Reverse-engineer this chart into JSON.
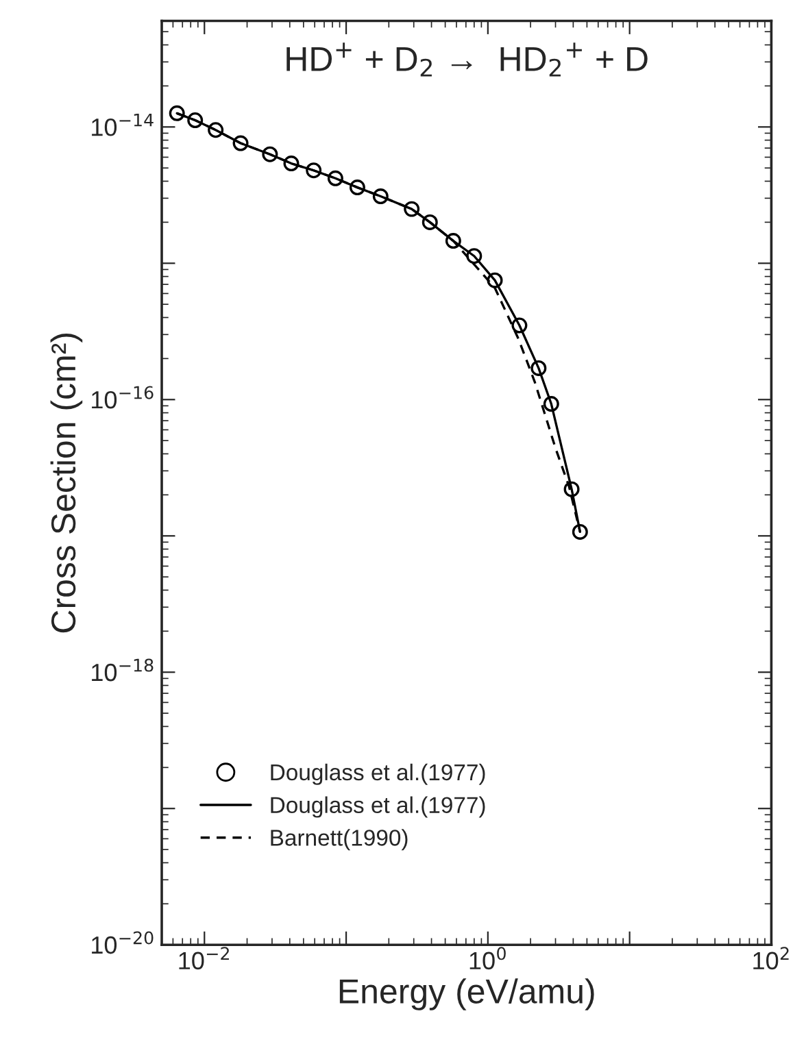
{
  "chart_data": {
    "type": "line",
    "title": "HD$^{+}$ + D$_{2}$ →  HD$_{2}$$^{+}$ + D",
    "xlabel": "Energy (eV/amu)",
    "ylabel": "Cross Section (cm²)",
    "log": "xy",
    "xlim": [
      0.005,
      100
    ],
    "ylim": [
      1e-20,
      6e-14
    ],
    "xticks": [
      {
        "value": 0.01,
        "label": "10$^{−2}$"
      },
      {
        "value": 0.1,
        "label": null
      },
      {
        "value": 1,
        "label": "10$^{0}$"
      },
      {
        "value": 10,
        "label": null
      },
      {
        "value": 100,
        "label": "10$^{2}$"
      }
    ],
    "yticks": [
      {
        "value": 1e-20,
        "label": "10$^{−20}$"
      },
      {
        "value": 1e-19,
        "label": null
      },
      {
        "value": 1e-18,
        "label": "10$^{−18}$"
      },
      {
        "value": 1e-17,
        "label": null
      },
      {
        "value": 1e-16,
        "label": "10$^{−16}$"
      },
      {
        "value": 1e-15,
        "label": null
      },
      {
        "value": 1e-14,
        "label": "10$^{−14}$"
      }
    ],
    "legend": "bottom left",
    "series": [
      {
        "name": "Douglass et al.(1977)",
        "type": "scatter",
        "marker": "circle",
        "color": "#000000",
        "x": [
          0.0064,
          0.0086,
          0.012,
          0.018,
          0.029,
          0.041,
          0.059,
          0.084,
          0.12,
          0.175,
          0.29,
          0.39,
          0.57,
          0.8,
          1.12,
          1.67,
          2.28,
          2.8,
          3.9,
          4.47
        ],
        "values": [
          1.26e-14,
          1.12e-14,
          9.5e-15,
          7.6e-15,
          6.3e-15,
          5.4e-15,
          4.8e-15,
          4.2e-15,
          3.6e-15,
          3.1e-15,
          2.5e-15,
          2e-15,
          1.46e-15,
          1.13e-15,
          7.5e-16,
          3.5e-16,
          1.7e-16,
          9.3e-17,
          2.2e-17,
          1.07e-17
        ]
      },
      {
        "name": "Douglass et al.(1977)",
        "line_style": "solid",
        "color": "#000000",
        "x": [
          0.0064,
          0.0086,
          0.012,
          0.018,
          0.029,
          0.041,
          0.059,
          0.084,
          0.12,
          0.175,
          0.29,
          0.39,
          0.57,
          0.8,
          1.12,
          1.67,
          2.28,
          2.8,
          3.9,
          4.47
        ],
        "values": [
          1.26e-14,
          1.12e-14,
          9.5e-15,
          7.6e-15,
          6.3e-15,
          5.4e-15,
          4.8e-15,
          4.2e-15,
          3.6e-15,
          3.1e-15,
          2.5e-15,
          2e-15,
          1.46e-15,
          1.13e-15,
          7.5e-16,
          3.5e-16,
          1.7e-16,
          9.3e-17,
          2.2e-17,
          1.07e-17
        ]
      },
      {
        "name": "Barnett(1990)",
        "line_style": "dashed",
        "color": "#000000",
        "x": [
          0.0064,
          0.0086,
          0.012,
          0.018,
          0.029,
          0.041,
          0.059,
          0.084,
          0.12,
          0.175,
          0.29,
          0.39,
          0.57,
          1.12,
          1.64,
          2.14,
          3.0,
          3.74,
          4.47
        ],
        "values": [
          1.26e-14,
          1.12e-14,
          9.5e-15,
          7.6e-15,
          6.3e-15,
          5.4e-15,
          4.8e-15,
          4.2e-15,
          3.6e-15,
          3.1e-15,
          2.5e-15,
          2e-15,
          1.46e-15,
          6.6e-16,
          2.8e-16,
          1.35e-16,
          4.4e-17,
          2.3e-17,
          1.07e-17
        ]
      }
    ]
  }
}
